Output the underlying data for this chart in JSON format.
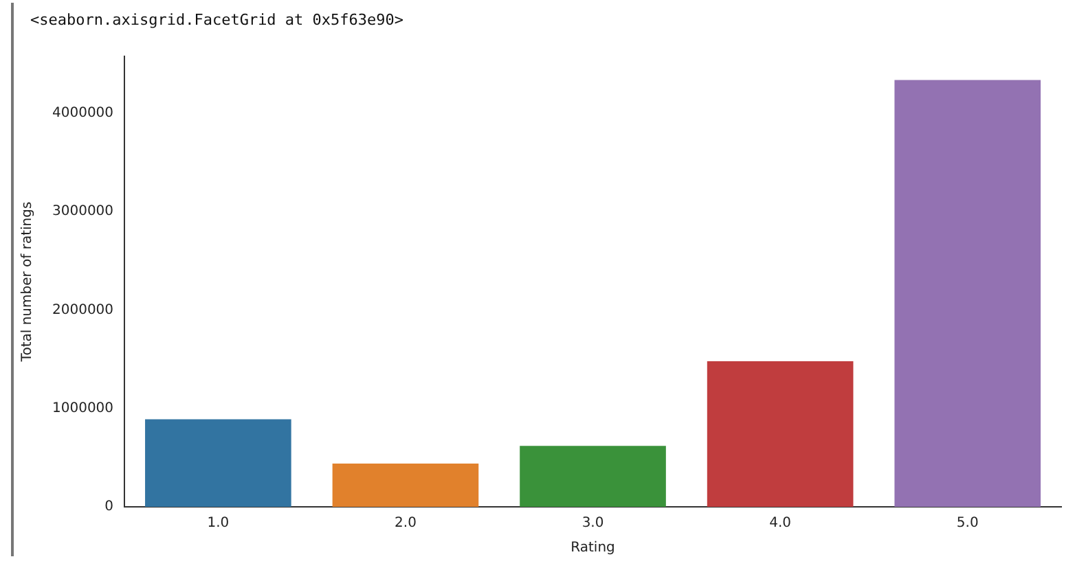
{
  "chart_data": {
    "type": "bar",
    "annotations": [
      "<seaborn.axisgrid.FacetGrid at 0x5f63e90>"
    ],
    "xlabel": "Rating",
    "ylabel": "Total number of ratings",
    "categories": [
      "1.0",
      "2.0",
      "3.0",
      "4.0",
      "5.0"
    ],
    "values": [
      890000,
      440000,
      620000,
      1480000,
      4340000
    ],
    "colors": [
      "#3274a1",
      "#e1812c",
      "#3a923a",
      "#c03d3e",
      "#9372b2"
    ],
    "ylim": [
      0,
      4580000
    ],
    "yticks": [
      0,
      1000000,
      2000000,
      3000000,
      4000000
    ],
    "grid": false,
    "legend": false
  }
}
